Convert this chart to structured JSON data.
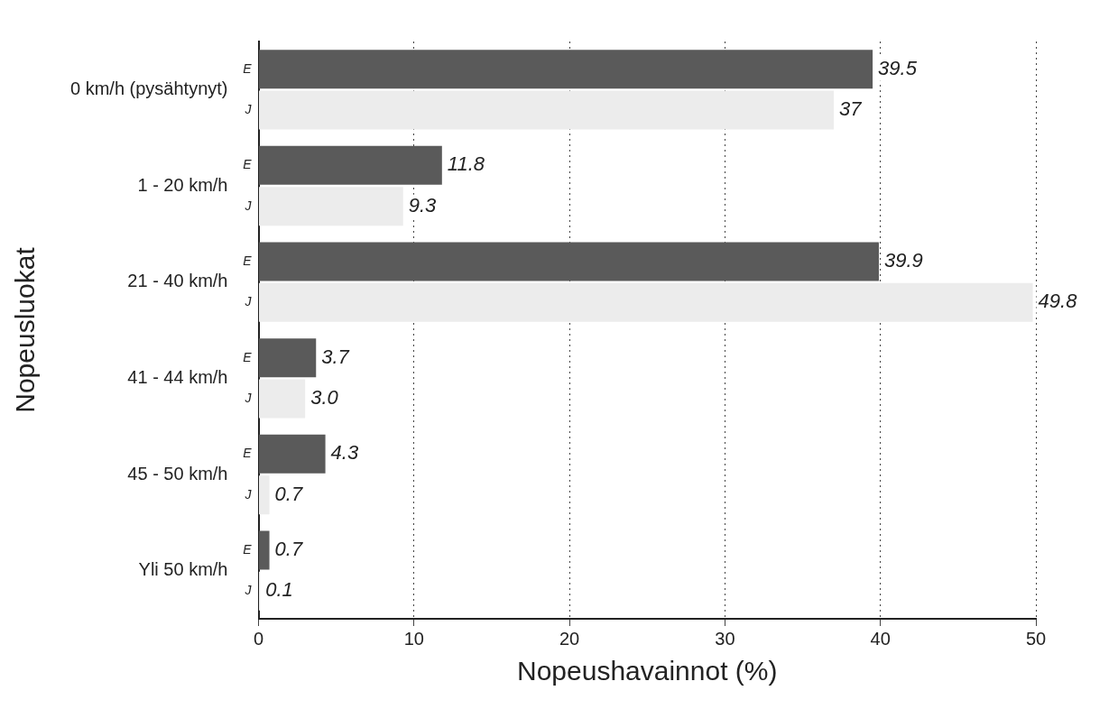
{
  "chart_data": {
    "type": "bar",
    "orientation": "horizontal",
    "xlabel": "Nopeushavainnot (%)",
    "ylabel": "Nopeusluokat",
    "categories": [
      "0 km/h (pysähtynyt)",
      "1 - 20 km/h",
      "21 - 40 km/h",
      "41 - 44 km/h",
      "45 - 50 km/h",
      "Yli 50 km/h"
    ],
    "series": [
      {
        "name": "E",
        "color": "#5a5a5a",
        "values": [
          39.5,
          11.8,
          39.9,
          3.7,
          4.3,
          0.7
        ],
        "value_labels": [
          "39.5",
          "11.8",
          "39.9",
          "3.7",
          "4.3",
          "0.7"
        ]
      },
      {
        "name": "J",
        "color": "#ececec",
        "values": [
          37,
          9.3,
          49.8,
          3.0,
          0.7,
          0.1
        ],
        "value_labels": [
          "37",
          "9.3",
          "49.8",
          "3.0",
          "0.7",
          "0.1"
        ]
      }
    ],
    "xlim": [
      0,
      50
    ],
    "xticks": [
      0,
      10,
      20,
      30,
      40,
      50
    ],
    "grid": "x",
    "legend": false
  }
}
